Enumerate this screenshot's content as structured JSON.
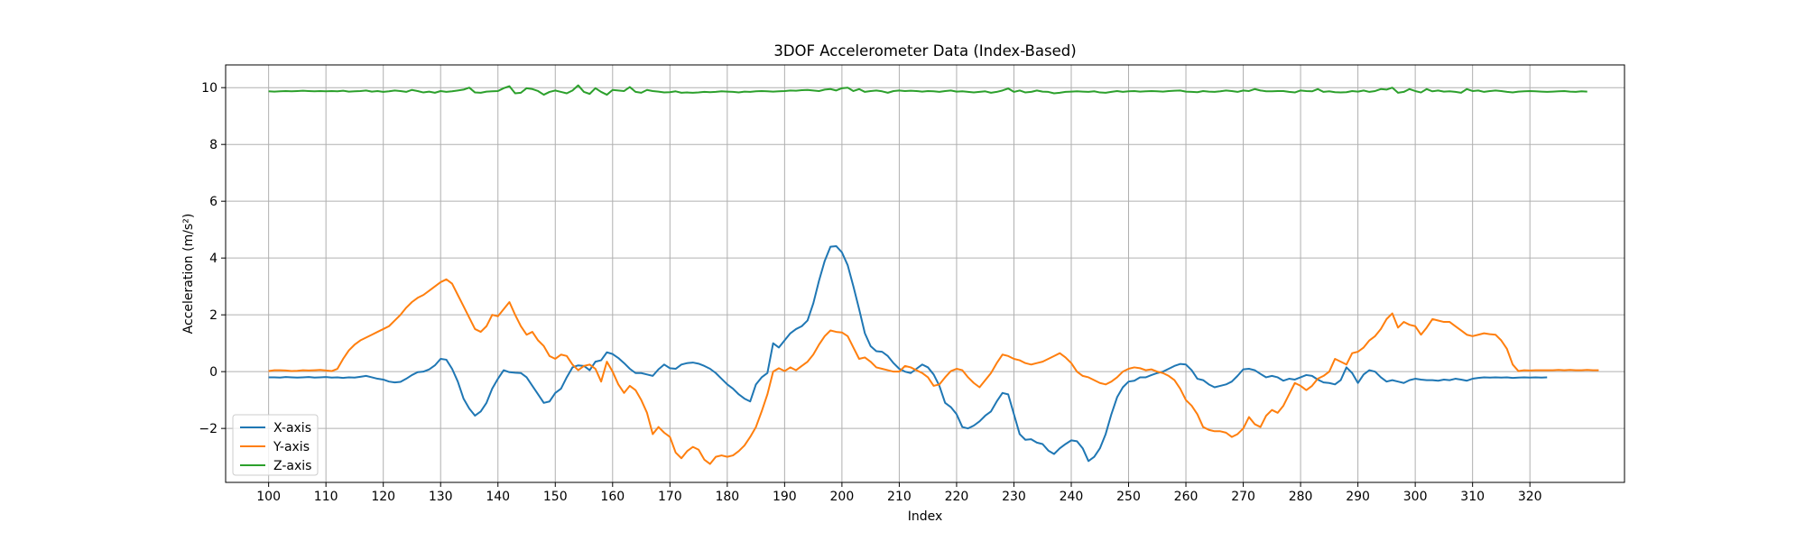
{
  "chart_data": {
    "type": "line",
    "title": "3DOF Accelerometer Data (Index-Based)",
    "xlabel": "Index",
    "ylabel": "Acceleration (m/s²)",
    "xlim": [
      92.5,
      336.5
    ],
    "ylim": [
      -3.9,
      10.8
    ],
    "x_ticks": [
      100,
      110,
      120,
      130,
      140,
      150,
      160,
      170,
      180,
      190,
      200,
      210,
      220,
      230,
      240,
      250,
      260,
      270,
      280,
      290,
      300,
      310,
      320
    ],
    "x_tick_labels": [
      "100",
      "110",
      "120",
      "130",
      "140",
      "150",
      "160",
      "170",
      "180",
      "190",
      "200",
      "210",
      "220",
      "230",
      "240",
      "250",
      "260",
      "270",
      "280",
      "290",
      "300",
      "310",
      "320"
    ],
    "y_ticks": [
      -2,
      0,
      2,
      4,
      6,
      8,
      10
    ],
    "y_tick_labels": [
      "−2",
      "0",
      "2",
      "4",
      "6",
      "8",
      "10"
    ],
    "grid": true,
    "legend_position": "lower-left",
    "x_start": 100,
    "series": [
      {
        "name": "X-axis",
        "color": "#1f77b4",
        "values": [
          -0.2,
          -0.2,
          -0.21,
          -0.19,
          -0.2,
          -0.21,
          -0.2,
          -0.19,
          -0.21,
          -0.2,
          -0.19,
          -0.21,
          -0.2,
          -0.22,
          -0.2,
          -0.21,
          -0.18,
          -0.15,
          -0.2,
          -0.25,
          -0.28,
          -0.35,
          -0.38,
          -0.36,
          -0.25,
          -0.12,
          -0.02,
          0.0,
          0.08,
          0.22,
          0.45,
          0.42,
          0.1,
          -0.35,
          -0.95,
          -1.3,
          -1.55,
          -1.4,
          -1.1,
          -0.6,
          -0.25,
          0.05,
          -0.02,
          -0.04,
          -0.05,
          -0.2,
          -0.5,
          -0.8,
          -1.1,
          -1.05,
          -0.75,
          -0.6,
          -0.2,
          0.15,
          0.22,
          0.2,
          0.05,
          0.35,
          0.4,
          0.68,
          0.62,
          0.48,
          0.3,
          0.1,
          -0.05,
          -0.05,
          -0.1,
          -0.15,
          0.08,
          0.25,
          0.12,
          0.1,
          0.25,
          0.3,
          0.32,
          0.28,
          0.2,
          0.1,
          -0.05,
          -0.25,
          -0.45,
          -0.6,
          -0.8,
          -0.95,
          -1.05,
          -0.45,
          -0.2,
          -0.05,
          1.0,
          0.85,
          1.1,
          1.35,
          1.5,
          1.6,
          1.8,
          2.4,
          3.2,
          3.9,
          4.4,
          4.42,
          4.2,
          3.75,
          3.0,
          2.2,
          1.35,
          0.9,
          0.72,
          0.7,
          0.55,
          0.3,
          0.1,
          0.0,
          -0.05,
          0.1,
          0.25,
          0.15,
          -0.1,
          -0.5,
          -1.1,
          -1.25,
          -1.5,
          -1.95,
          -2.0,
          -1.9,
          -1.75,
          -1.55,
          -1.4,
          -1.05,
          -0.75,
          -0.8,
          -1.5,
          -2.2,
          -2.4,
          -2.38,
          -2.5,
          -2.55,
          -2.78,
          -2.9,
          -2.7,
          -2.55,
          -2.42,
          -2.45,
          -2.7,
          -3.15,
          -3.0,
          -2.7,
          -2.2,
          -1.5,
          -0.9,
          -0.55,
          -0.35,
          -0.32,
          -0.2,
          -0.2,
          -0.12,
          -0.05,
          0.0,
          0.1,
          0.2,
          0.27,
          0.25,
          0.05,
          -0.25,
          -0.3,
          -0.45,
          -0.55,
          -0.5,
          -0.45,
          -0.35,
          -0.15,
          0.08,
          0.1,
          0.05,
          -0.08,
          -0.2,
          -0.15,
          -0.2,
          -0.32,
          -0.25,
          -0.28,
          -0.2,
          -0.12,
          -0.15,
          -0.28,
          -0.38,
          -0.4,
          -0.45,
          -0.3,
          0.15,
          -0.05,
          -0.4,
          -0.1,
          0.05,
          0.0,
          -0.2,
          -0.35,
          -0.3,
          -0.35,
          -0.4,
          -0.3,
          -0.25,
          -0.28,
          -0.3,
          -0.3,
          -0.32,
          -0.28,
          -0.3,
          -0.25,
          -0.28,
          -0.32,
          -0.25,
          -0.22,
          -0.2,
          -0.21,
          -0.2,
          -0.21,
          -0.2,
          -0.22,
          -0.21,
          -0.2,
          -0.21,
          -0.2,
          -0.21,
          -0.2
        ]
      },
      {
        "name": "Y-axis",
        "color": "#ff7f0e",
        "values": [
          0.02,
          0.05,
          0.05,
          0.04,
          0.02,
          0.03,
          0.05,
          0.04,
          0.05,
          0.06,
          0.04,
          0.02,
          0.1,
          0.45,
          0.75,
          0.95,
          1.1,
          1.2,
          1.3,
          1.4,
          1.5,
          1.6,
          1.8,
          2.0,
          2.25,
          2.45,
          2.6,
          2.7,
          2.85,
          3.0,
          3.15,
          3.25,
          3.1,
          2.7,
          2.3,
          1.9,
          1.5,
          1.4,
          1.6,
          2.0,
          1.95,
          2.2,
          2.45,
          2.0,
          1.6,
          1.3,
          1.4,
          1.1,
          0.9,
          0.55,
          0.45,
          0.6,
          0.55,
          0.25,
          0.05,
          0.2,
          0.25,
          0.1,
          -0.35,
          0.35,
          0.0,
          -0.45,
          -0.75,
          -0.5,
          -0.65,
          -1.0,
          -1.45,
          -2.2,
          -1.95,
          -2.15,
          -2.3,
          -2.85,
          -3.05,
          -2.8,
          -2.65,
          -2.75,
          -3.1,
          -3.25,
          -3.0,
          -2.95,
          -3.0,
          -2.95,
          -2.8,
          -2.6,
          -2.3,
          -1.95,
          -1.4,
          -0.8,
          0.0,
          0.12,
          0.02,
          0.15,
          0.05,
          0.2,
          0.35,
          0.6,
          0.95,
          1.25,
          1.45,
          1.4,
          1.38,
          1.25,
          0.85,
          0.45,
          0.5,
          0.35,
          0.15,
          0.1,
          0.05,
          0.0,
          0.0,
          0.2,
          0.15,
          0.05,
          -0.05,
          -0.2,
          -0.5,
          -0.45,
          -0.2,
          0.02,
          0.1,
          0.05,
          -0.2,
          -0.4,
          -0.55,
          -0.3,
          -0.05,
          0.3,
          0.6,
          0.55,
          0.45,
          0.4,
          0.3,
          0.25,
          0.3,
          0.35,
          0.45,
          0.55,
          0.65,
          0.5,
          0.3,
          0.0,
          -0.15,
          -0.2,
          -0.3,
          -0.4,
          -0.45,
          -0.35,
          -0.2,
          0.0,
          0.1,
          0.15,
          0.12,
          0.05,
          0.08,
          0.0,
          -0.05,
          -0.15,
          -0.3,
          -0.6,
          -1.0,
          -1.2,
          -1.5,
          -1.95,
          -2.05,
          -2.1,
          -2.1,
          -2.15,
          -2.3,
          -2.2,
          -2.0,
          -1.6,
          -1.85,
          -1.95,
          -1.55,
          -1.35,
          -1.45,
          -1.2,
          -0.8,
          -0.4,
          -0.5,
          -0.65,
          -0.5,
          -0.25,
          -0.15,
          0.0,
          0.45,
          0.35,
          0.25,
          0.65,
          0.7,
          0.85,
          1.1,
          1.25,
          1.5,
          1.85,
          2.05,
          1.55,
          1.75,
          1.65,
          1.6,
          1.3,
          1.55,
          1.85,
          1.8,
          1.75,
          1.75,
          1.6,
          1.45,
          1.3,
          1.25,
          1.3,
          1.35,
          1.32,
          1.3,
          1.1,
          0.8,
          0.25,
          0.02,
          0.05,
          0.04,
          0.05,
          0.05,
          0.05,
          0.05,
          0.06,
          0.05,
          0.06,
          0.05,
          0.05,
          0.06,
          0.05,
          0.05
        ]
      },
      {
        "name": "Z-axis",
        "color": "#2ca02c",
        "values": [
          9.87,
          9.86,
          9.87,
          9.88,
          9.87,
          9.88,
          9.89,
          9.88,
          9.87,
          9.88,
          9.87,
          9.88,
          9.87,
          9.89,
          9.86,
          9.87,
          9.88,
          9.9,
          9.86,
          9.88,
          9.85,
          9.87,
          9.9,
          9.88,
          9.85,
          9.92,
          9.88,
          9.83,
          9.86,
          9.82,
          9.88,
          9.85,
          9.87,
          9.9,
          9.93,
          10.0,
          9.83,
          9.82,
          9.86,
          9.87,
          9.88,
          9.98,
          10.05,
          9.8,
          9.82,
          9.98,
          9.95,
          9.88,
          9.75,
          9.85,
          9.9,
          9.85,
          9.8,
          9.9,
          10.08,
          9.85,
          9.78,
          9.98,
          9.85,
          9.75,
          9.92,
          9.9,
          9.88,
          10.02,
          9.85,
          9.82,
          9.92,
          9.88,
          9.86,
          9.83,
          9.84,
          9.87,
          9.82,
          9.83,
          9.82,
          9.83,
          9.85,
          9.84,
          9.85,
          9.87,
          9.86,
          9.85,
          9.83,
          9.86,
          9.85,
          9.87,
          9.88,
          9.87,
          9.86,
          9.87,
          9.88,
          9.9,
          9.89,
          9.91,
          9.92,
          9.9,
          9.88,
          9.93,
          9.95,
          9.9,
          9.98,
          10.0,
          9.88,
          9.95,
          9.85,
          9.88,
          9.9,
          9.87,
          9.82,
          9.88,
          9.9,
          9.88,
          9.89,
          9.88,
          9.86,
          9.88,
          9.87,
          9.85,
          9.88,
          9.9,
          9.86,
          9.87,
          9.85,
          9.83,
          9.85,
          9.87,
          9.82,
          9.85,
          9.9,
          9.97,
          9.85,
          9.9,
          9.83,
          9.85,
          9.9,
          9.86,
          9.85,
          9.8,
          9.82,
          9.85,
          9.86,
          9.87,
          9.86,
          9.85,
          9.87,
          9.83,
          9.82,
          9.85,
          9.88,
          9.85,
          9.87,
          9.88,
          9.86,
          9.87,
          9.88,
          9.87,
          9.86,
          9.88,
          9.89,
          9.9,
          9.86,
          9.85,
          9.84,
          9.88,
          9.86,
          9.85,
          9.87,
          9.9,
          9.88,
          9.85,
          9.9,
          9.88,
          9.95,
          9.9,
          9.87,
          9.87,
          9.88,
          9.88,
          9.85,
          9.83,
          9.9,
          9.88,
          9.87,
          9.95,
          9.85,
          9.87,
          9.84,
          9.83,
          9.84,
          9.88,
          9.86,
          9.9,
          9.85,
          9.88,
          9.95,
          9.93,
          10.0,
          9.82,
          9.85,
          9.95,
          9.88,
          9.83,
          9.95,
          9.87,
          9.9,
          9.86,
          9.87,
          9.85,
          9.82,
          9.95,
          9.88,
          9.9,
          9.85,
          9.88,
          9.9,
          9.88,
          9.85,
          9.83,
          9.86,
          9.87,
          9.88,
          9.87,
          9.86,
          9.85,
          9.86,
          9.87,
          9.88,
          9.86,
          9.85,
          9.87,
          9.86
        ]
      }
    ]
  }
}
